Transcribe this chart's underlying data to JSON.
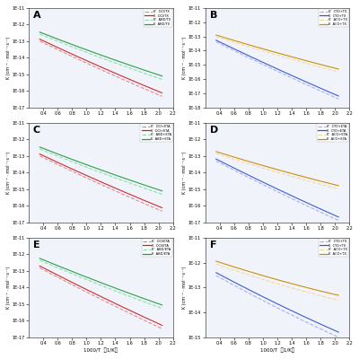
{
  "fig_width": 4.0,
  "fig_height": 4.0,
  "dpi": 100,
  "bg_color": "#f0f4fa",
  "subplots": [
    {
      "label": "A",
      "ylim_exp": [
        -17,
        -11
      ],
      "xlim": [
        0.2,
        2.2
      ],
      "yticks_exp": [
        -17,
        -16,
        -15,
        -14,
        -13,
        -12,
        -11
      ],
      "xticks": [
        0.4,
        0.6,
        0.8,
        1.0,
        1.2,
        1.4,
        1.6,
        1.8,
        2.0,
        2.2
      ],
      "show_xlabel": false,
      "series": [
        {
          "color": "#e08888",
          "linestyle": "--",
          "legend_k": "K'",
          "legend_sys": "OCl/TX",
          "log_a": -12.25,
          "log_b": 2.15
        },
        {
          "color": "#cc2222",
          "linestyle": "-",
          "legend_k": "K",
          "legend_sys": "OCl/TX",
          "log_a": -12.15,
          "log_b": 2.1
        },
        {
          "color": "#88ddaa",
          "linestyle": "--",
          "legend_k": "K'",
          "legend_sys": "ABD/TX",
          "log_a": -11.95,
          "log_b": 1.8
        },
        {
          "color": "#229944",
          "linestyle": "-",
          "legend_k": "K",
          "legend_sys": "ABD/TX",
          "log_a": -11.85,
          "log_b": 1.75
        }
      ]
    },
    {
      "label": "B",
      "ylim_exp": [
        -18,
        -11
      ],
      "xlim": [
        0.2,
        2.2
      ],
      "yticks_exp": [
        -18,
        -17,
        -16,
        -15,
        -14,
        -13,
        -12,
        -11
      ],
      "xticks": [
        0.4,
        0.6,
        0.8,
        1.0,
        1.2,
        1.4,
        1.6,
        1.8,
        2.0,
        2.2
      ],
      "show_xlabel": false,
      "series": [
        {
          "color": "#aaaaee",
          "linestyle": "--",
          "legend_k": "K'",
          "legend_sys": "CYO+TX",
          "log_a": -12.5,
          "log_b": 2.55
        },
        {
          "color": "#3355cc",
          "linestyle": "-",
          "legend_k": "K",
          "legend_sys": "CYO+TX",
          "log_a": -12.4,
          "log_b": 2.5
        },
        {
          "color": "#f0d898",
          "linestyle": "--",
          "legend_k": "K'",
          "legend_sys": "ACO+TX",
          "log_a": -12.45,
          "log_b": 1.65
        },
        {
          "color": "#cc8800",
          "linestyle": "-",
          "legend_k": "K",
          "legend_sys": "ACO+TX",
          "log_a": -12.35,
          "log_b": 1.6
        }
      ]
    },
    {
      "label": "C",
      "ylim_exp": [
        -17,
        -11
      ],
      "xlim": [
        0.2,
        2.2
      ],
      "yticks_exp": [
        -17,
        -16,
        -15,
        -14,
        -13,
        -12,
        -11
      ],
      "xticks": [
        0.4,
        0.6,
        0.8,
        1.0,
        1.2,
        1.4,
        1.6,
        1.8,
        2.0,
        2.2
      ],
      "show_xlabel": false,
      "series": [
        {
          "color": "#e08888",
          "linestyle": "--",
          "legend_k": "K'",
          "legend_sys": "OCl+ETA",
          "log_a": -12.25,
          "log_b": 2.15
        },
        {
          "color": "#cc2222",
          "linestyle": "-",
          "legend_k": "K",
          "legend_sys": "OCl+ETA",
          "log_a": -12.15,
          "log_b": 2.1
        },
        {
          "color": "#88ddaa",
          "linestyle": "--",
          "legend_k": "K'",
          "legend_sys": "ABD+ETA",
          "log_a": -11.95,
          "log_b": 1.8
        },
        {
          "color": "#229944",
          "linestyle": "-",
          "legend_k": "K",
          "legend_sys": "ABD+ETA",
          "log_a": -11.85,
          "log_b": 1.75
        }
      ]
    },
    {
      "label": "D",
      "ylim_exp": [
        -17,
        -11
      ],
      "xlim": [
        0.2,
        2.2
      ],
      "yticks_exp": [
        -17,
        -16,
        -15,
        -14,
        -13,
        -12,
        -11
      ],
      "xticks": [
        0.4,
        0.6,
        0.8,
        1.0,
        1.2,
        1.4,
        1.6,
        1.8,
        2.0,
        2.2
      ],
      "show_xlabel": false,
      "series": [
        {
          "color": "#aaaaee",
          "linestyle": "--",
          "legend_k": "K'",
          "legend_sys": "CYO+ETA",
          "log_a": -12.5,
          "log_b": 2.3
        },
        {
          "color": "#3355cc",
          "linestyle": "-",
          "legend_k": "K",
          "legend_sys": "CYO+ETA",
          "log_a": -12.4,
          "log_b": 2.25
        },
        {
          "color": "#f0d898",
          "linestyle": "--",
          "legend_k": "K'",
          "legend_sys": "ACO+ETA",
          "log_a": -12.35,
          "log_b": 1.45
        },
        {
          "color": "#cc8800",
          "linestyle": "-",
          "legend_k": "K",
          "legend_sys": "ACO+ETA",
          "log_a": -12.25,
          "log_b": 1.4
        }
      ]
    },
    {
      "label": "E",
      "ylim_exp": [
        -17,
        -11
      ],
      "xlim": [
        0.2,
        2.2
      ],
      "yticks_exp": [
        -17,
        -16,
        -15,
        -14,
        -13,
        -12,
        -11
      ],
      "xticks": [
        0.4,
        0.6,
        0.8,
        1.0,
        1.2,
        1.4,
        1.6,
        1.8,
        2.0,
        2.2
      ],
      "show_xlabel": true,
      "series": [
        {
          "color": "#e08888",
          "linestyle": "--",
          "legend_k": "K'",
          "legend_sys": "OCl/ETA",
          "log_a": -12.0,
          "log_b": 2.35
        },
        {
          "color": "#cc2222",
          "linestyle": "-",
          "legend_k": "K",
          "legend_sys": "OCl/ETA",
          "log_a": -11.9,
          "log_b": 2.3
        },
        {
          "color": "#88ddaa",
          "linestyle": "--",
          "legend_k": "K'",
          "legend_sys": "ABD/ETA",
          "log_a": -11.7,
          "log_b": 1.9
        },
        {
          "color": "#229944",
          "linestyle": "-",
          "legend_k": "K",
          "legend_sys": "ABD/ETA",
          "log_a": -11.6,
          "log_b": 1.85
        }
      ]
    },
    {
      "label": "F",
      "ylim_exp": [
        -15,
        -11
      ],
      "xlim": [
        0.2,
        2.2
      ],
      "yticks_exp": [
        -15,
        -14,
        -13,
        -12,
        -11
      ],
      "xticks": [
        0.4,
        0.6,
        0.8,
        1.0,
        1.2,
        1.4,
        1.6,
        1.8,
        2.0,
        2.2
      ],
      "show_xlabel": true,
      "series": [
        {
          "color": "#aaaaee",
          "linestyle": "--",
          "legend_k": "K'",
          "legend_sys": "CYO+TX",
          "log_a": -11.95,
          "log_b": 1.65
        },
        {
          "color": "#3355cc",
          "linestyle": "-",
          "legend_k": "K",
          "legend_sys": "CYO+TX",
          "log_a": -11.85,
          "log_b": 1.6
        },
        {
          "color": "#f0d898",
          "linestyle": "--",
          "legend_k": "K'",
          "legend_sys": "ACO+TX",
          "log_a": -11.7,
          "log_b": 1.05
        },
        {
          "color": "#cc8800",
          "linestyle": "-",
          "legend_k": "K",
          "legend_sys": "ACO+TX",
          "log_a": -11.6,
          "log_b": 1.0
        }
      ]
    }
  ]
}
